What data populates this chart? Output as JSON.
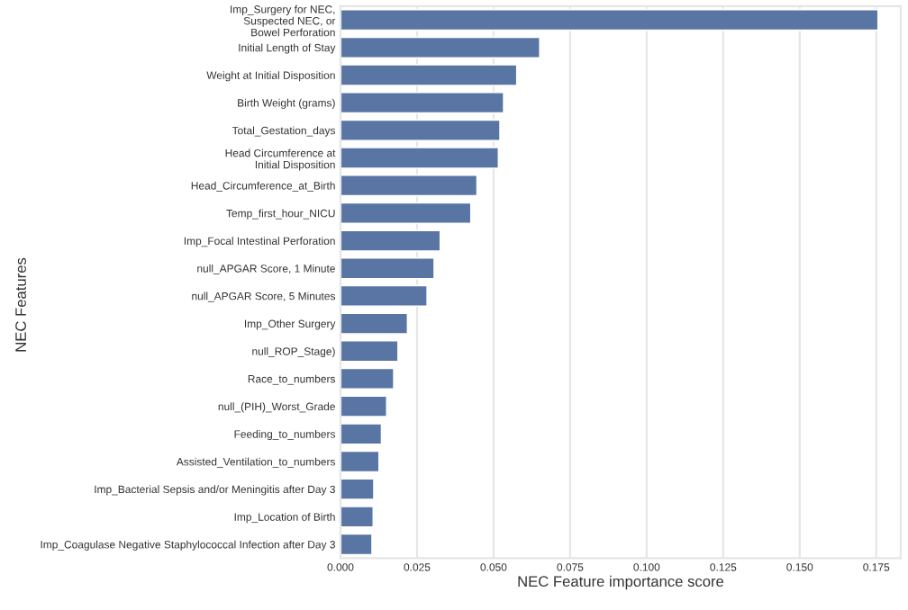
{
  "chart_data": {
    "type": "bar",
    "orientation": "horizontal",
    "xlabel": "NEC Feature importance score",
    "ylabel": "NEC Features",
    "categories": [
      "Imp_Surgery for NEC,\nSuspected NEC, or\nBowel Perforation",
      "Initial Length of Stay",
      "Weight at Initial Disposition",
      "Birth Weight (grams)",
      "Total_Gestation_days",
      "Head Circumference at\nInitial Disposition",
      "Head_Circumference_at_Birth",
      "Temp_first_hour_NICU",
      "Imp_Focal Intestinal Perforation",
      "null_APGAR Score, 1 Minute",
      "null_APGAR Score, 5 Minutes",
      "Imp_Other Surgery",
      "null_ROP_Stage)",
      "Race_to_numbers",
      "null_(PIH)_Worst_Grade",
      "Feeding_to_numbers",
      "Assisted_Ventilation_to_numbers",
      "Imp_Bacterial Sepsis and/or Meningitis after Day 3",
      "Imp_Location of Birth",
      "Imp_Coagulase Negative Staphylococcal Infection after Day 3"
    ],
    "values": [
      0.1756,
      0.0651,
      0.0576,
      0.0533,
      0.0521,
      0.0516,
      0.0446,
      0.0426,
      0.0326,
      0.0306,
      0.0283,
      0.0219,
      0.0188,
      0.0174,
      0.0151,
      0.0134,
      0.0126,
      0.0109,
      0.0107,
      0.0103
    ],
    "color": "#5875a4",
    "xlim": [
      0,
      0.183
    ],
    "xticks": [
      {
        "value": 0,
        "label": "0.000"
      },
      {
        "value": 0.025,
        "label": "0.025"
      },
      {
        "value": 0.05,
        "label": "0.050"
      },
      {
        "value": 0.075,
        "label": "0.075"
      },
      {
        "value": 0.1,
        "label": "0.100"
      },
      {
        "value": 0.125,
        "label": "0.125"
      },
      {
        "value": 0.15,
        "label": "0.150"
      },
      {
        "value": 0.175,
        "label": "0.175"
      }
    ],
    "grid": "x"
  }
}
